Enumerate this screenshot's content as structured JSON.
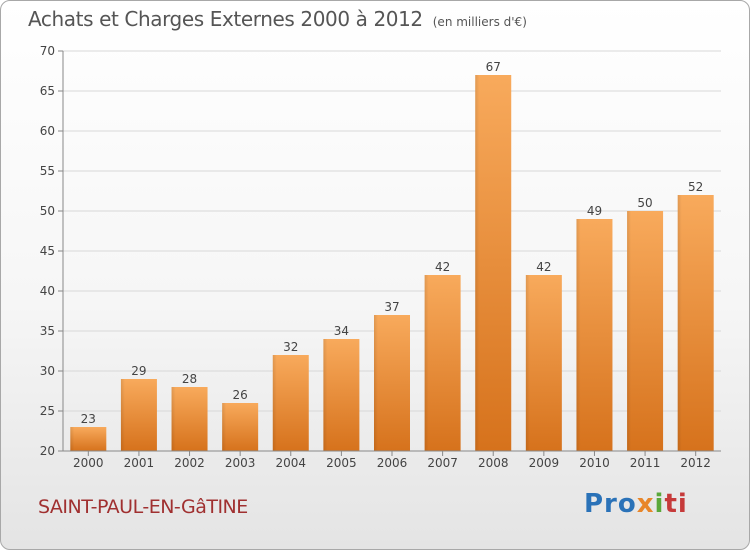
{
  "title": "Achats et Charges Externes 2000 à 2012",
  "unit": "(en milliers d'€)",
  "commune": "SAINT-PAUL-EN-GâTINE",
  "logo": {
    "part1": "Pro",
    "part2": "x",
    "part3": "i",
    "part4": "ti"
  },
  "colors": {
    "bar_light": "#f7a657",
    "bar_dark": "#d9761f",
    "title": "#555555",
    "commune": "#a03030"
  },
  "chart_data": {
    "type": "bar",
    "categories": [
      "2000",
      "2001",
      "2002",
      "2003",
      "2004",
      "2005",
      "2006",
      "2007",
      "2008",
      "2009",
      "2010",
      "2011",
      "2012"
    ],
    "values": [
      23,
      29,
      28,
      26,
      32,
      34,
      37,
      42,
      67,
      42,
      49,
      50,
      52
    ],
    "ylim": [
      20,
      70
    ],
    "yticks": [
      20,
      25,
      30,
      35,
      40,
      45,
      50,
      55,
      60,
      65,
      70
    ],
    "grid": true
  }
}
